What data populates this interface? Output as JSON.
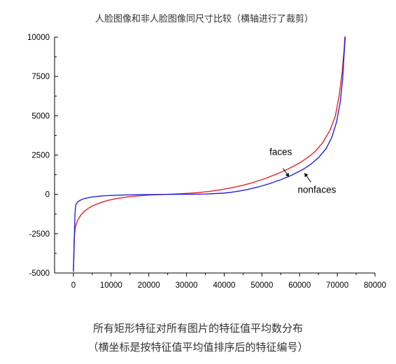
{
  "chart_data": {
    "type": "line",
    "title": "人脸图像和非人脸图像同尺寸比较（横轴进行了裁剪）",
    "xlabel": "",
    "ylabel": "",
    "xlim": [
      -5000,
      80000
    ],
    "ylim": [
      -5000,
      10000
    ],
    "x_ticks": [
      "0",
      "10000",
      "20000",
      "30000",
      "40000",
      "50000",
      "60000",
      "70000",
      "80000"
    ],
    "y_ticks": [
      "10000",
      "7500",
      "5000",
      "2500",
      "0",
      "-2500",
      "-5000"
    ],
    "grid": false,
    "legend": "annotations",
    "annotations": [
      "faces",
      "nonfaces"
    ],
    "series": [
      {
        "name": "faces",
        "color": "#e8202a",
        "points": [
          [
            0,
            -4800
          ],
          [
            200,
            -2800
          ],
          [
            500,
            -2100
          ],
          [
            1000,
            -1700
          ],
          [
            2000,
            -1300
          ],
          [
            3000,
            -1050
          ],
          [
            4000,
            -880
          ],
          [
            5000,
            -740
          ],
          [
            7000,
            -540
          ],
          [
            9000,
            -390
          ],
          [
            12000,
            -240
          ],
          [
            15000,
            -140
          ],
          [
            18000,
            -80
          ],
          [
            21000,
            -35
          ],
          [
            24000,
            -5
          ],
          [
            27000,
            25
          ],
          [
            30000,
            60
          ],
          [
            33000,
            110
          ],
          [
            36000,
            190
          ],
          [
            39000,
            290
          ],
          [
            42000,
            420
          ],
          [
            45000,
            580
          ],
          [
            48000,
            780
          ],
          [
            51000,
            1020
          ],
          [
            54000,
            1300
          ],
          [
            57000,
            1620
          ],
          [
            60000,
            2000
          ],
          [
            62000,
            2320
          ],
          [
            64000,
            2700
          ],
          [
            66000,
            3250
          ],
          [
            68000,
            4050
          ],
          [
            69500,
            5000
          ],
          [
            70500,
            6300
          ],
          [
            71300,
            7800
          ],
          [
            71800,
            9200
          ],
          [
            72000,
            10000
          ]
        ]
      },
      {
        "name": "nonfaces",
        "color": "#2222dd",
        "points": [
          [
            0,
            -4900
          ],
          [
            200,
            -3200
          ],
          [
            400,
            -1300
          ],
          [
            600,
            -700
          ],
          [
            1000,
            -500
          ],
          [
            2000,
            -350
          ],
          [
            3000,
            -260
          ],
          [
            5000,
            -160
          ],
          [
            8000,
            -90
          ],
          [
            12000,
            -50
          ],
          [
            16000,
            -25
          ],
          [
            20000,
            -10
          ],
          [
            25000,
            0
          ],
          [
            30000,
            5
          ],
          [
            35000,
            20
          ],
          [
            40000,
            80
          ],
          [
            43000,
            170
          ],
          [
            46000,
            300
          ],
          [
            49000,
            470
          ],
          [
            52000,
            680
          ],
          [
            55000,
            930
          ],
          [
            58000,
            1230
          ],
          [
            61000,
            1600
          ],
          [
            63000,
            1920
          ],
          [
            65000,
            2330
          ],
          [
            67000,
            2900
          ],
          [
            68500,
            3600
          ],
          [
            69800,
            4600
          ],
          [
            70800,
            5900
          ],
          [
            71400,
            7300
          ],
          [
            71800,
            8900
          ],
          [
            72100,
            10000
          ]
        ]
      }
    ]
  },
  "caption": {
    "line1": "所有矩形特征对所有图片的特征值平均数分布",
    "line2": "（横坐标是按特征值平均值排序后的特征编号）"
  }
}
